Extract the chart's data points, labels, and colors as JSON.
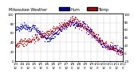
{
  "title_left": "Milwaukee Weather  Hum  ",
  "title_right": "Temp",
  "color_humidity": "#0000cc",
  "color_temp": "#cc0000",
  "bg_color": "#ffffff",
  "plot_bg": "#ffffff",
  "grid_color": "#bbbbbb",
  "marker_size": 0.8,
  "title_fontsize": 3.5,
  "tick_fontsize": 2.8,
  "legend_fontsize": 3.0,
  "ylim_left": [
    0,
    100
  ],
  "ylim_right": [
    -20,
    100
  ],
  "yticks_left": [
    0,
    20,
    40,
    60,
    80,
    100
  ],
  "yticks_right": [
    -20,
    0,
    20,
    40,
    60,
    80,
    100
  ],
  "n_points": 400,
  "seed": 42
}
